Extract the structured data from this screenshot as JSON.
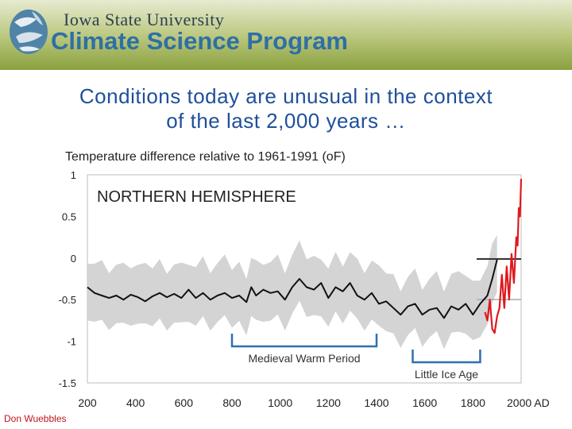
{
  "header": {
    "university": "Iowa State University",
    "program": "Climate Science Program"
  },
  "slide": {
    "headline_line1": "Conditions today are unusual in the context",
    "headline_line2": "of the last 2,000 years …",
    "author": "Don Wuebbles"
  },
  "colors": {
    "header_green": "#8aa13f",
    "title_blue": "#1f4f9a",
    "recon_black": "#111111",
    "instrumental_red": "#e0191e",
    "band_gray": "#cfcfcf"
  },
  "chart_data": {
    "type": "line",
    "title": "Temperature difference relative to 1961-1991 (oF)",
    "panel_label": "NORTHERN HEMISPHERE",
    "x_ticks": [
      "200",
      "400",
      "600",
      "800",
      "1000",
      "1200",
      "1400",
      "1600",
      "1800",
      "2000 AD"
    ],
    "y_ticks": [
      "1",
      "0.5",
      "0",
      "-0.5",
      "-1",
      "-1.5"
    ],
    "xlim": [
      200,
      2000
    ],
    "ylim": [
      -1.5,
      1
    ],
    "grid": false,
    "annotations": [
      {
        "text": "Medieval Warm Period",
        "x_range": [
          800,
          1400
        ]
      },
      {
        "text": "Little Ice Age",
        "x_range": [
          1550,
          1830
        ]
      }
    ],
    "series": [
      {
        "x": [
          200,
          230,
          260,
          290,
          320,
          350,
          380,
          410,
          440,
          470,
          500,
          530,
          560,
          590,
          620,
          650,
          680,
          710,
          740,
          770,
          800,
          830,
          860,
          880,
          900,
          930,
          960,
          990,
          1020,
          1050,
          1080,
          1110,
          1140,
          1170,
          1200,
          1230,
          1260,
          1290,
          1320,
          1350,
          1380,
          1410,
          1440,
          1470,
          1500,
          1530,
          1560,
          1590,
          1620,
          1650,
          1680,
          1710,
          1740,
          1770,
          1800,
          1830,
          1860,
          1880,
          1900
        ],
        "y": [
          -0.35,
          -0.42,
          -0.45,
          -0.48,
          -0.45,
          -0.5,
          -0.44,
          -0.47,
          -0.52,
          -0.46,
          -0.42,
          -0.47,
          -0.43,
          -0.48,
          -0.38,
          -0.48,
          -0.42,
          -0.5,
          -0.45,
          -0.42,
          -0.48,
          -0.45,
          -0.53,
          -0.35,
          -0.45,
          -0.38,
          -0.42,
          -0.4,
          -0.5,
          -0.35,
          -0.25,
          -0.35,
          -0.38,
          -0.3,
          -0.48,
          -0.35,
          -0.4,
          -0.3,
          -0.45,
          -0.5,
          -0.42,
          -0.55,
          -0.52,
          -0.6,
          -0.68,
          -0.58,
          -0.55,
          -0.68,
          -0.62,
          -0.6,
          -0.72,
          -0.58,
          -0.62,
          -0.55,
          -0.68,
          -0.55,
          -0.45,
          -0.25,
          -0.02
        ]
      },
      {
        "x": [
          1850,
          1860,
          1870,
          1880,
          1890,
          1900,
          1910,
          1920,
          1930,
          1940,
          1950,
          1960,
          1970,
          1980,
          1985,
          1990,
          1995,
          2000
        ],
        "y": [
          -0.65,
          -0.75,
          -0.5,
          -0.85,
          -0.9,
          -0.7,
          -0.6,
          -0.2,
          -0.6,
          -0.1,
          -0.5,
          0.05,
          -0.3,
          0.25,
          0.15,
          0.6,
          0.5,
          0.95
        ]
      }
    ]
  }
}
